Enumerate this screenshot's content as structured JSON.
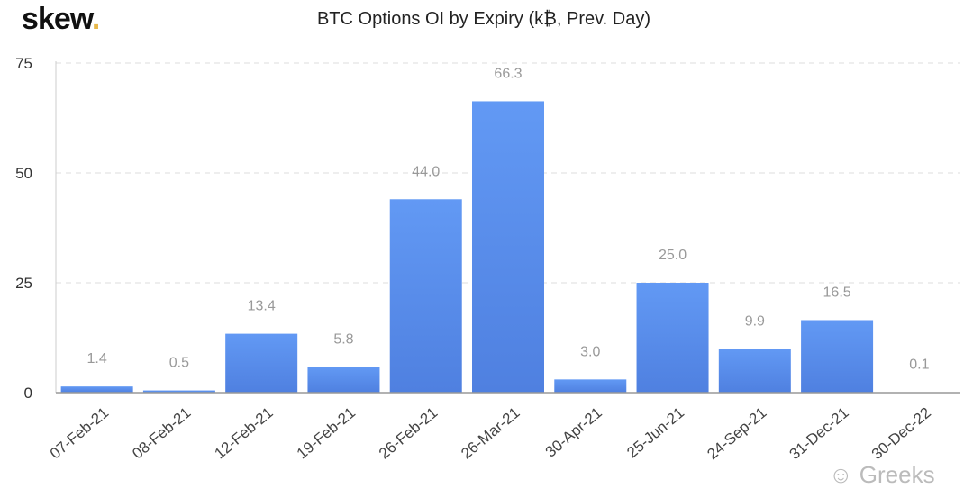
{
  "logo": {
    "text": "skew",
    "dot": "."
  },
  "watermark": "Greeks",
  "chart_data": {
    "type": "bar",
    "title": "BTC Options OI by Expiry (k₿, Prev. Day)",
    "xlabel": "",
    "ylabel": "",
    "ylim": [
      0,
      75
    ],
    "yticks": [
      0,
      25,
      50,
      75
    ],
    "grid": true,
    "categories": [
      "07-Feb-21",
      "08-Feb-21",
      "12-Feb-21",
      "19-Feb-21",
      "26-Feb-21",
      "26-Mar-21",
      "30-Apr-21",
      "25-Jun-21",
      "24-Sep-21",
      "31-Dec-21",
      "30-Dec-22"
    ],
    "values": [
      1.4,
      0.5,
      13.4,
      5.8,
      44.0,
      66.3,
      3.0,
      25.0,
      9.9,
      16.5,
      0.1
    ],
    "bar_color": "#5b8ff0"
  }
}
